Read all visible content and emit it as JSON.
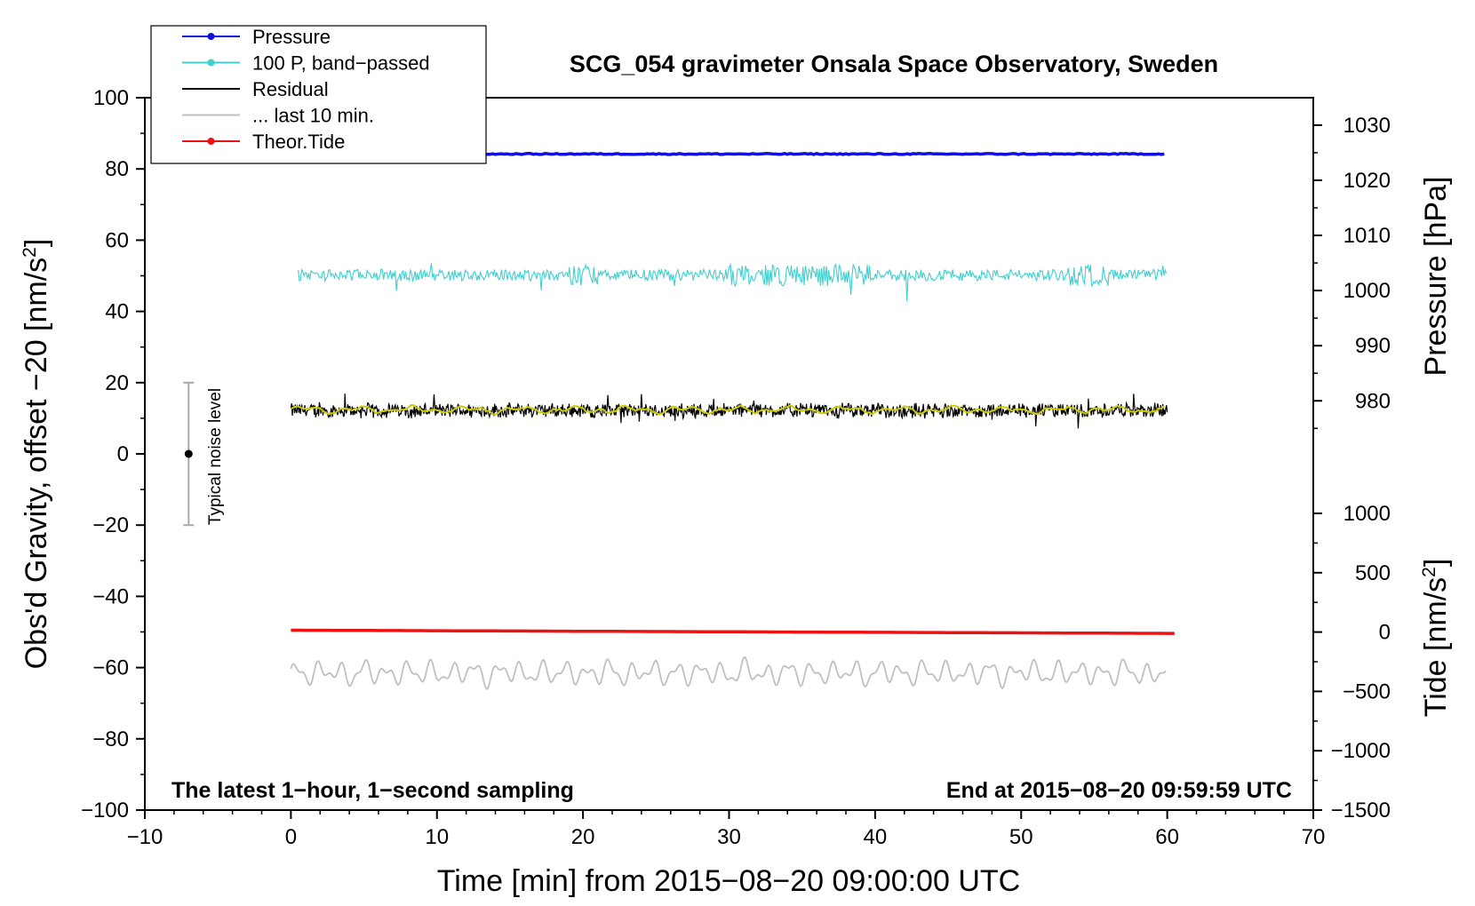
{
  "chart_data": {
    "type": "line",
    "title": "SCG_054 gravimeter Onsala Space Observatory, Sweden",
    "xlabel": "Time [min] from 2015−08−20 09:00:00 UTC",
    "ylabel_left": "Obs'd Gravity, offset −20 [nm/s",
    "ylabel_left_sup": "2",
    "ylabel_left_end": "]",
    "ylabel_right_top": "Pressure [hPa]",
    "ylabel_right_bottom": "Tide [nm/s",
    "ylabel_right_bottom_sup": "2",
    "ylabel_right_bottom_end": "]",
    "xlim": [
      -10,
      70
    ],
    "ylim_left": [
      -100,
      100
    ],
    "xticks": [
      -10,
      0,
      10,
      20,
      30,
      40,
      50,
      60,
      70
    ],
    "xtick_labels": [
      "−10",
      "0",
      "10",
      "20",
      "30",
      "40",
      "50",
      "60",
      "70"
    ],
    "yticks_left": [
      100,
      80,
      60,
      40,
      20,
      0,
      -20,
      -40,
      -60,
      -80,
      -100
    ],
    "ytick_labels_left": [
      "100",
      "80",
      "60",
      "40",
      "20",
      "0",
      "−20",
      "−40",
      "−60",
      "−80",
      "−100"
    ],
    "pressure_axis": {
      "ticks": [
        1030,
        1020,
        1010,
        1000,
        990,
        980
      ],
      "tick_labels": [
        "1030",
        "1020",
        "1010",
        "1000",
        "990",
        "980"
      ],
      "map_to_left": {
        "p1": 1030,
        "y1": 92.3,
        "p2": 980,
        "y2": 14.9
      }
    },
    "tide_axis": {
      "ticks": [
        1000,
        500,
        0,
        -500,
        -1000,
        -1500
      ],
      "tick_labels": [
        "1000",
        "500",
        "0",
        "−500",
        "−1000",
        "−1500"
      ],
      "map_to_left": {
        "t1": 1000,
        "y1": -16.7,
        "t2": -1500,
        "y2": -100
      }
    },
    "series": [
      {
        "name": "Pressure",
        "color": "#1010dd",
        "x_range": [
          0,
          60
        ],
        "level": 84.2,
        "noise": 0.15,
        "pressure_hPa": 1024.8
      },
      {
        "name": "100 P, band−passed",
        "color": "#3fcfcf",
        "x_range": [
          0,
          60
        ],
        "level": 50.2,
        "noise": 1.6,
        "min": 38.6,
        "max": 56.7
      },
      {
        "name": "Residual",
        "color": "#000000",
        "x_range": [
          0,
          60
        ],
        "level": 12.2,
        "noise": 2.0,
        "min": 5.7,
        "max": 18.2
      },
      {
        "name": "... last 10 min.",
        "color": "#c0c0c0",
        "x_range": [
          0,
          60
        ],
        "level": -61.5,
        "noise": 2.4,
        "min": -67.5,
        "max": -56.5
      },
      {
        "name": "Theor.Tide",
        "color": "#ee1111",
        "x_range": [
          0,
          60.5
        ],
        "start": -49.5,
        "end": -50.4,
        "tide_nm_s2": 0
      }
    ],
    "smoothed_residual": {
      "color": "#cccc00",
      "level": 12.4
    },
    "noise_bar": {
      "x": -7,
      "center": 0,
      "low": -20,
      "high": 20,
      "label": "Typical noise level"
    },
    "legend": {
      "position": "top-left",
      "entries": [
        {
          "label": "Pressure",
          "color": "#1010dd",
          "marker": true
        },
        {
          "label": "100 P, band−passed",
          "color": "#3fcfcf",
          "marker": true
        },
        {
          "label": "Residual",
          "color": "#000000",
          "marker": false
        },
        {
          "label": "... last 10 min.",
          "color": "#c0c0c0",
          "marker": false
        },
        {
          "label": "Theor.Tide",
          "color": "#ee1111",
          "marker": true
        }
      ]
    },
    "annotations": {
      "bottom_left": "The latest 1−hour, 1−second sampling",
      "bottom_right": "End at 2015−08−20 09:59:59 UTC"
    }
  }
}
